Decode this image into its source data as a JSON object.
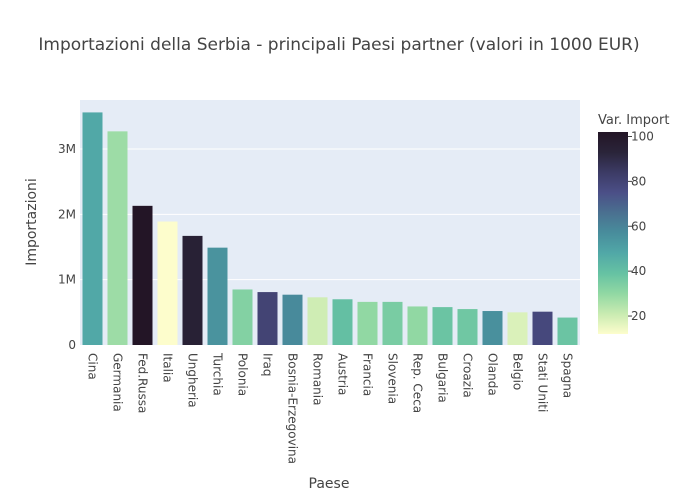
{
  "chart_data": {
    "type": "bar",
    "title": "Importazioni della Serbia - principali Paesi partner (valori in 1000 EUR)",
    "xlabel": "Paese",
    "ylabel": "Importazioni",
    "y_ticks": [
      {
        "value": 0,
        "label": "0"
      },
      {
        "value": 1000000,
        "label": "1M"
      },
      {
        "value": 2000000,
        "label": "2M"
      },
      {
        "value": 3000000,
        "label": "3M"
      }
    ],
    "ylim": [
      0,
      3750000
    ],
    "grid": true,
    "categories": [
      "Cina",
      "Germania",
      "Fed.Russa",
      "Italia",
      "Ungheria",
      "Turchia",
      "Polonia",
      "Iraq",
      "Bosnia-Erzegovina",
      "Romania",
      "Austria",
      "Francia",
      "Slovenia",
      "Rep. Ceca",
      "Bulgaria",
      "Croazia",
      "Olanda",
      "Belgio",
      "Stati Uniti",
      "Spagna"
    ],
    "values": [
      3560000,
      3270000,
      2130000,
      1890000,
      1670000,
      1490000,
      850000,
      810000,
      770000,
      730000,
      700000,
      660000,
      660000,
      590000,
      580000,
      550000,
      520000,
      500000,
      510000,
      420000
    ],
    "color_values": [
      48,
      28,
      102,
      12,
      95,
      55,
      33,
      80,
      58,
      20,
      40,
      30,
      35,
      30,
      38,
      37,
      56,
      18,
      78,
      38
    ],
    "colorbar": {
      "title": "Var. Import",
      "range": [
        12,
        102
      ],
      "ticks": [
        20,
        40,
        60,
        80,
        100
      ],
      "colorscale": [
        "#fdfdcc",
        "#c9ebb1",
        "#91d8a3",
        "#66c2a3",
        "#51a8a7",
        "#488d9c",
        "#4a7090",
        "#4b4f87",
        "#3c3b65",
        "#2a2439",
        "#231526"
      ]
    }
  }
}
